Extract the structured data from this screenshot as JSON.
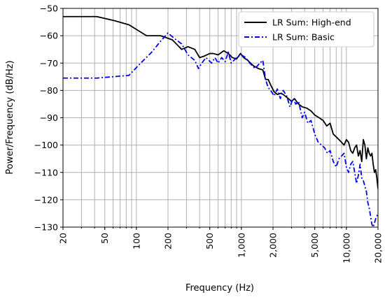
{
  "chart_data": {
    "type": "line",
    "title": "",
    "xlabel": "Frequency (Hz)",
    "ylabel": "Power/Frequency (dB/Hz)",
    "xscale": "log",
    "xlim": [
      20,
      20000
    ],
    "ylim": [
      -130,
      -50
    ],
    "grid": true,
    "legend_position": "top-right",
    "x_ticks": [
      20,
      50,
      100,
      200,
      500,
      1000,
      2000,
      5000,
      10000,
      20000
    ],
    "x_tick_labels": [
      "20",
      "50",
      "100",
      "200",
      "500",
      "1,000",
      "2,000",
      "5,000",
      "10,000",
      "20,000"
    ],
    "y_ticks": [
      -50,
      -60,
      -70,
      -80,
      -90,
      -100,
      -110,
      -120,
      -130
    ],
    "y_tick_labels": [
      "−50",
      "−60",
      "−70",
      "−80",
      "−90",
      "−100",
      "−110",
      "−120",
      "−130"
    ],
    "series": [
      {
        "name": "LR Sum: High-end",
        "color": "#000000",
        "style": "solid",
        "x": [
          20,
          42,
          62,
          85,
          125,
          170,
          220,
          270,
          310,
          360,
          400,
          440,
          500,
          540,
          600,
          680,
          750,
          820,
          900,
          980,
          1050,
          1150,
          1300,
          1450,
          1600,
          1700,
          1800,
          1900,
          2050,
          2200,
          2400,
          2600,
          2800,
          3000,
          3200,
          3500,
          3800,
          4200,
          4600,
          5000,
          5500,
          6000,
          6500,
          7000,
          7500,
          8000,
          8500,
          9000,
          9500,
          10000,
          10500,
          11000,
          11500,
          12000,
          12500,
          13000,
          13500,
          14000,
          14500,
          15000,
          15500,
          16000,
          16500,
          17000,
          17500,
          18000,
          18500,
          19000,
          19500,
          20000
        ],
        "values": [
          -53,
          -53,
          -54.5,
          -56,
          -60,
          -60,
          -61.5,
          -65,
          -64,
          -65,
          -68,
          -67.5,
          -66.5,
          -66.5,
          -67,
          -65.5,
          -66.5,
          -68,
          -68.5,
          -66.5,
          -68,
          -69,
          -71,
          -72,
          -72.5,
          -76,
          -76,
          -78,
          -80.5,
          -81.5,
          -81,
          -82,
          -83,
          -84,
          -83,
          -85,
          -86,
          -86.5,
          -87.5,
          -89,
          -90,
          -91,
          -93,
          -92,
          -96,
          -97,
          -98,
          -99,
          -100,
          -98,
          -99,
          -102,
          -103,
          -101,
          -100,
          -104,
          -102,
          -106,
          -98,
          -100,
          -105,
          -101,
          -103,
          -104,
          -103,
          -107,
          -110,
          -109,
          -112,
          -116
        ]
      },
      {
        "name": "LR Sum: Basic",
        "color": "#0000ee",
        "style": "dashdot",
        "x": [
          20,
          42,
          85,
          110,
          140,
          170,
          200,
          230,
          270,
          310,
          360,
          390,
          420,
          460,
          520,
          560,
          600,
          650,
          700,
          750,
          800,
          900,
          1000,
          1100,
          1200,
          1350,
          1500,
          1600,
          1700,
          1800,
          1900,
          2050,
          2200,
          2350,
          2500,
          2700,
          2900,
          3100,
          3300,
          3500,
          3800,
          4000,
          4300,
          4600,
          5000,
          5400,
          5800,
          6200,
          6600,
          7000,
          7500,
          8000,
          8500,
          9000,
          9500,
          10000,
          10500,
          11000,
          11500,
          12000,
          12500,
          13000,
          13500,
          14000,
          14500,
          15000,
          15500,
          16000,
          16500,
          17000,
          17500,
          18000,
          19000,
          20000
        ],
        "values": [
          -75.5,
          -75.5,
          -74.5,
          -70,
          -66,
          -62,
          -59,
          -61,
          -63,
          -67,
          -69,
          -72,
          -70,
          -68,
          -70,
          -68,
          -70,
          -68,
          -69.5,
          -66,
          -70,
          -68,
          -67,
          -68,
          -70,
          -72,
          -70,
          -69,
          -76,
          -79,
          -80,
          -82,
          -79.5,
          -83,
          -80,
          -82,
          -86,
          -83,
          -85,
          -84,
          -90,
          -88,
          -92,
          -91,
          -96,
          -99,
          -100,
          -101,
          -103,
          -102,
          -106,
          -108,
          -105,
          -104,
          -103,
          -108,
          -110,
          -107,
          -106,
          -110,
          -114,
          -111,
          -107,
          -112,
          -113,
          -115,
          -117,
          -121,
          -123,
          -126,
          -129,
          -130,
          -127,
          -125
        ]
      }
    ]
  }
}
